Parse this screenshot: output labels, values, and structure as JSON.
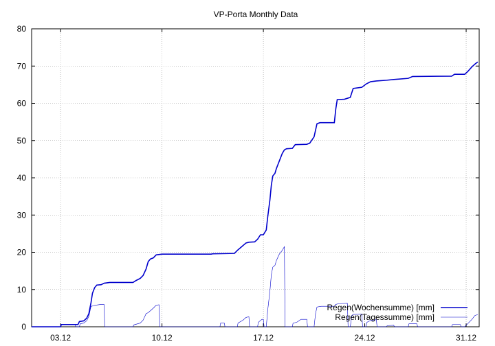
{
  "chart_data": {
    "type": "line",
    "title": "VP-Porta Monthly Data",
    "xlabel": "",
    "ylabel": "",
    "xlim": [
      0,
      30.9
    ],
    "ylim": [
      0,
      80
    ],
    "grid": true,
    "legend_position": "bottom-right",
    "x_ticks": [
      {
        "label": "03.12",
        "value": 2.0
      },
      {
        "label": "10.12",
        "value": 9.0
      },
      {
        "label": "17.12",
        "value": 16.0
      },
      {
        "label": "24.12",
        "value": 23.0
      },
      {
        "label": "31.12",
        "value": 30.0
      }
    ],
    "y_ticks": [
      0,
      10,
      20,
      30,
      40,
      50,
      60,
      70,
      80
    ],
    "series": [
      {
        "name": "Regen(Wochensumme) [mm]",
        "color": "#0000cc",
        "style": "thick",
        "points": [
          [
            0,
            0
          ],
          [
            2.0,
            0
          ],
          [
            2.05,
            0.6
          ],
          [
            3.2,
            0.6
          ],
          [
            3.3,
            1.4
          ],
          [
            3.6,
            1.6
          ],
          [
            3.8,
            2.3
          ],
          [
            3.95,
            3.5
          ],
          [
            4.1,
            6.5
          ],
          [
            4.2,
            9.0
          ],
          [
            4.35,
            10.5
          ],
          [
            4.5,
            11.2
          ],
          [
            4.8,
            11.3
          ],
          [
            5.0,
            11.7
          ],
          [
            5.4,
            11.9
          ],
          [
            7.0,
            11.9
          ],
          [
            7.2,
            12.4
          ],
          [
            7.5,
            13.0
          ],
          [
            7.7,
            13.8
          ],
          [
            7.9,
            15.5
          ],
          [
            8.05,
            17.5
          ],
          [
            8.2,
            18.2
          ],
          [
            8.4,
            18.5
          ],
          [
            8.6,
            19.3
          ],
          [
            9.0,
            19.5
          ],
          [
            12.0,
            19.5
          ],
          [
            12.4,
            19.5
          ],
          [
            12.5,
            19.6
          ],
          [
            14.0,
            19.7
          ],
          [
            14.2,
            20.5
          ],
          [
            14.5,
            21.5
          ],
          [
            14.8,
            22.5
          ],
          [
            15.0,
            22.7
          ],
          [
            15.4,
            22.8
          ],
          [
            15.6,
            23.5
          ],
          [
            15.8,
            24.7
          ],
          [
            16.0,
            24.7
          ],
          [
            16.2,
            26.0
          ],
          [
            16.3,
            29.5
          ],
          [
            16.45,
            34.0
          ],
          [
            16.55,
            38.0
          ],
          [
            16.65,
            40.5
          ],
          [
            16.8,
            41.2
          ],
          [
            16.9,
            42.5
          ],
          [
            17.0,
            43.5
          ],
          [
            17.1,
            44.5
          ],
          [
            17.3,
            46.5
          ],
          [
            17.45,
            47.5
          ],
          [
            17.6,
            47.8
          ],
          [
            18.0,
            47.9
          ],
          [
            18.2,
            48.9
          ],
          [
            19.0,
            49.0
          ],
          [
            19.2,
            49.3
          ],
          [
            19.5,
            51.0
          ],
          [
            19.7,
            54.5
          ],
          [
            19.9,
            54.8
          ],
          [
            20.9,
            54.8
          ],
          [
            21.0,
            58.5
          ],
          [
            21.1,
            61.0
          ],
          [
            21.6,
            61.1
          ],
          [
            22.0,
            61.6
          ],
          [
            22.2,
            64.0
          ],
          [
            22.8,
            64.3
          ],
          [
            23.1,
            65.2
          ],
          [
            23.4,
            65.8
          ],
          [
            23.8,
            66.0
          ],
          [
            24.5,
            66.2
          ],
          [
            25.0,
            66.4
          ],
          [
            26.0,
            66.7
          ],
          [
            26.3,
            67.2
          ],
          [
            29.0,
            67.3
          ],
          [
            29.2,
            67.8
          ],
          [
            29.9,
            67.8
          ],
          [
            30.1,
            68.5
          ],
          [
            30.4,
            69.8
          ],
          [
            30.6,
            70.5
          ],
          [
            30.8,
            71.1
          ]
        ]
      },
      {
        "name": "Regen(Tagessumme) [mm]",
        "color": "#0000cc",
        "style": "thin",
        "points": [
          [
            0,
            0
          ],
          [
            2.0,
            0
          ],
          [
            2.05,
            0.6
          ],
          [
            3.0,
            0.6
          ],
          [
            3.05,
            0
          ],
          [
            3.3,
            0
          ],
          [
            3.35,
            0.8
          ],
          [
            3.6,
            1.0
          ],
          [
            3.8,
            1.6
          ],
          [
            3.95,
            2.8
          ],
          [
            4.1,
            5.5
          ],
          [
            4.25,
            5.6
          ],
          [
            4.4,
            5.8
          ],
          [
            4.8,
            6.0
          ],
          [
            5.0,
            6.0
          ],
          [
            5.05,
            0
          ],
          [
            7.0,
            0
          ],
          [
            7.05,
            0.5
          ],
          [
            7.5,
            1.0
          ],
          [
            7.7,
            1.8
          ],
          [
            7.9,
            3.5
          ],
          [
            8.05,
            3.8
          ],
          [
            8.4,
            5.0
          ],
          [
            8.6,
            5.8
          ],
          [
            8.8,
            5.9
          ],
          [
            8.85,
            0
          ],
          [
            13.0,
            0
          ],
          [
            13.05,
            1.0
          ],
          [
            13.3,
            1.0
          ],
          [
            13.35,
            0
          ],
          [
            14.2,
            0
          ],
          [
            14.25,
            1.0
          ],
          [
            14.6,
            1.8
          ],
          [
            14.8,
            2.5
          ],
          [
            15.0,
            2.7
          ],
          [
            15.05,
            0
          ],
          [
            15.6,
            0
          ],
          [
            15.65,
            1.2
          ],
          [
            15.9,
            2.0
          ],
          [
            16.0,
            2.0
          ],
          [
            16.05,
            0
          ],
          [
            16.2,
            0
          ],
          [
            16.3,
            4.5
          ],
          [
            16.45,
            9.5
          ],
          [
            16.55,
            14.0
          ],
          [
            16.65,
            16.0
          ],
          [
            16.8,
            16.5
          ],
          [
            16.9,
            17.8
          ],
          [
            17.1,
            19.5
          ],
          [
            17.3,
            20.5
          ],
          [
            17.45,
            21.5
          ],
          [
            17.5,
            0
          ],
          [
            18.0,
            0
          ],
          [
            18.05,
            1.0
          ],
          [
            18.3,
            1.2
          ],
          [
            18.6,
            2.0
          ],
          [
            19.0,
            2.0
          ],
          [
            19.05,
            0
          ],
          [
            19.5,
            0
          ],
          [
            19.6,
            3.5
          ],
          [
            19.7,
            5.3
          ],
          [
            20.0,
            5.5
          ],
          [
            20.9,
            5.5
          ],
          [
            21.0,
            6.0
          ],
          [
            21.2,
            6.2
          ],
          [
            21.8,
            6.3
          ],
          [
            21.85,
            0
          ],
          [
            22.0,
            0
          ],
          [
            22.1,
            3.0
          ],
          [
            22.2,
            3.3
          ],
          [
            22.8,
            3.4
          ],
          [
            22.85,
            0
          ],
          [
            23.1,
            0
          ],
          [
            23.15,
            1.2
          ],
          [
            23.4,
            1.7
          ],
          [
            23.8,
            1.9
          ],
          [
            23.85,
            0
          ],
          [
            24.5,
            0
          ],
          [
            24.55,
            0.3
          ],
          [
            25.0,
            0.4
          ],
          [
            25.05,
            0
          ],
          [
            26.0,
            0
          ],
          [
            26.05,
            0.8
          ],
          [
            26.6,
            0.8
          ],
          [
            26.65,
            0
          ],
          [
            29.0,
            0
          ],
          [
            29.05,
            0.6
          ],
          [
            29.6,
            0.6
          ],
          [
            29.65,
            0
          ],
          [
            29.9,
            0
          ],
          [
            30.1,
            0.8
          ],
          [
            30.4,
            2.0
          ],
          [
            30.6,
            3.0
          ],
          [
            30.8,
            3.3
          ]
        ]
      }
    ]
  }
}
